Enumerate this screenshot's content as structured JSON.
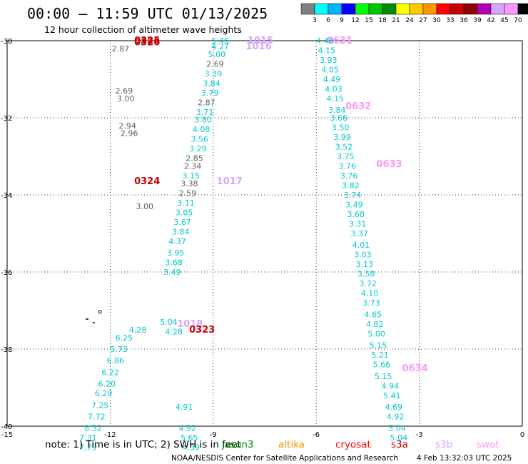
{
  "header": {
    "title": "00:00 – 11:59 UTC 01/13/2025",
    "subtitle": "12 hour collection of altimeter wave heights"
  },
  "scale": {
    "labels": [
      "3",
      "6",
      "9",
      "12",
      "15",
      "18",
      "21",
      "24",
      "27",
      "30",
      "33",
      "36",
      "39",
      "42",
      "45",
      "70"
    ],
    "unit": "(ft)",
    "colors": [
      "#808080",
      "#00ffff",
      "#00b4ff",
      "#0000ff",
      "#00ff00",
      "#00c800",
      "#008c00",
      "#ffff00",
      "#ffc800",
      "#ff9600",
      "#ff0000",
      "#c80000",
      "#8c0000",
      "#b400b4",
      "#d7a5ff",
      "#ff96ff",
      "#000000"
    ]
  },
  "footer": {
    "note": "note: 1) Time is in UTC; 2) SWH is in feet",
    "credit": "NOAA/NESDIS Center for Satellite Applications and Research",
    "timestamp": "4 Feb 13:32:03 UTC 2025"
  },
  "legend": [
    {
      "name": "jason3",
      "color": "#008c00"
    },
    {
      "name": "altika",
      "color": "#ff9600"
    },
    {
      "name": "cryosat",
      "color": "#ff0000"
    },
    {
      "name": "s3a",
      "color": "#c80000"
    },
    {
      "name": "s3b",
      "color": "#d7a5ff"
    },
    {
      "name": "swot",
      "color": "#ff96ff"
    }
  ],
  "chart_data": {
    "type": "scatter",
    "xlim": [
      -15,
      0
    ],
    "ylim": [
      -40,
      -30
    ],
    "x_ticks": [
      "-15",
      "-12",
      "-9",
      "-6",
      "-3",
      "0"
    ],
    "y_ticks": [
      "-30",
      "-32",
      "-34",
      "-36",
      "-38",
      "-40"
    ],
    "grid": true,
    "series": [
      {
        "name": "swot",
        "color": "#ff96ff",
        "labels": [
          {
            "x": -5.7,
            "y": -30.0,
            "text": "0631"
          },
          {
            "x": -5.15,
            "y": -31.7,
            "text": "0632"
          },
          {
            "x": -4.25,
            "y": -33.2,
            "text": "0633"
          },
          {
            "x": -3.5,
            "y": -38.5,
            "text": "0634"
          }
        ]
      },
      {
        "name": "s3b",
        "color": "#d7a5ff",
        "labels": [
          {
            "x": -8.0,
            "y": -30.0,
            "text": "1015"
          },
          {
            "x": -8.05,
            "y": -30.15,
            "text": "1016"
          },
          {
            "x": -8.9,
            "y": -33.65,
            "text": "1017"
          },
          {
            "x": -10.05,
            "y": -37.35,
            "text": "1018"
          }
        ]
      },
      {
        "name": "s3a",
        "color": "#c80000",
        "labels": [
          {
            "x": -11.3,
            "y": -30.0,
            "text": "0325"
          },
          {
            "x": -11.3,
            "y": -30.05,
            "text": "0326"
          },
          {
            "x": -11.3,
            "y": -33.65,
            "text": "0324"
          },
          {
            "x": -9.7,
            "y": -37.5,
            "text": "0323"
          }
        ]
      },
      {
        "name": "values",
        "color": "#00ffff",
        "labels": [
          {
            "x": -9.05,
            "y": -30.0,
            "text": "5.46",
            "c": 1
          },
          {
            "x": -9.05,
            "y": -30.15,
            "text": "4.27",
            "c": 1
          },
          {
            "x": -9.15,
            "y": -30.35,
            "text": "5.00",
            "c": 1
          },
          {
            "x": -9.2,
            "y": -30.6,
            "text": "2.69",
            "c": 0
          },
          {
            "x": -9.25,
            "y": -30.85,
            "text": "3.39",
            "c": 1
          },
          {
            "x": -9.3,
            "y": -31.1,
            "text": "3.84",
            "c": 1
          },
          {
            "x": -9.35,
            "y": -31.35,
            "text": "3.79",
            "c": 1
          },
          {
            "x": -9.45,
            "y": -31.6,
            "text": "2.87",
            "c": 0
          },
          {
            "x": -9.5,
            "y": -31.85,
            "text": "3.71",
            "c": 1
          },
          {
            "x": -9.55,
            "y": -32.05,
            "text": "3.80",
            "c": 1
          },
          {
            "x": -9.6,
            "y": -32.3,
            "text": "4.08",
            "c": 1
          },
          {
            "x": -9.65,
            "y": -32.55,
            "text": "3.56",
            "c": 1
          },
          {
            "x": -9.7,
            "y": -32.8,
            "text": "3.29",
            "c": 1
          },
          {
            "x": -9.8,
            "y": -33.05,
            "text": "2.85",
            "c": 0
          },
          {
            "x": -9.85,
            "y": -33.25,
            "text": "2.34",
            "c": 0
          },
          {
            "x": -9.9,
            "y": -33.5,
            "text": "3.15",
            "c": 1
          },
          {
            "x": -9.95,
            "y": -33.7,
            "text": "3.38",
            "c": 0
          },
          {
            "x": -10.0,
            "y": -33.95,
            "text": "2.59",
            "c": 0
          },
          {
            "x": -10.05,
            "y": -34.2,
            "text": "3.11",
            "c": 1
          },
          {
            "x": -10.1,
            "y": -34.45,
            "text": "3.05",
            "c": 1
          },
          {
            "x": -10.15,
            "y": -34.7,
            "text": "3.67",
            "c": 1
          },
          {
            "x": -10.2,
            "y": -34.95,
            "text": "3.84",
            "c": 1
          },
          {
            "x": -10.3,
            "y": -35.2,
            "text": "4.37",
            "c": 1
          },
          {
            "x": -10.35,
            "y": -35.5,
            "text": "3.95",
            "c": 1
          },
          {
            "x": -10.4,
            "y": -35.75,
            "text": "3.68",
            "c": 1
          },
          {
            "x": -10.45,
            "y": -36.0,
            "text": "3.49",
            "c": 1
          },
          {
            "x": -11.95,
            "y": -30.2,
            "text": "2.87",
            "c": 0
          },
          {
            "x": -11.85,
            "y": -31.3,
            "text": "2.69",
            "c": 0
          },
          {
            "x": -11.8,
            "y": -31.5,
            "text": "3.00",
            "c": 0
          },
          {
            "x": -11.75,
            "y": -32.2,
            "text": "2.94",
            "c": 0
          },
          {
            "x": -11.7,
            "y": -32.4,
            "text": "2.96",
            "c": 0
          },
          {
            "x": -11.25,
            "y": -34.3,
            "text": "3.00",
            "c": 0
          },
          {
            "x": -11.45,
            "y": -37.5,
            "text": "4.28",
            "c": 1
          },
          {
            "x": -11.85,
            "y": -37.7,
            "text": "6.25",
            "c": 1
          },
          {
            "x": -12.0,
            "y": -38.0,
            "text": "5.73",
            "c": 1
          },
          {
            "x": -12.1,
            "y": -38.3,
            "text": "6.86",
            "c": 1
          },
          {
            "x": -12.25,
            "y": -38.6,
            "text": "6.22",
            "c": 1
          },
          {
            "x": -12.35,
            "y": -38.9,
            "text": "6.20",
            "c": 1
          },
          {
            "x": -12.45,
            "y": -39.15,
            "text": "6.29",
            "c": 1
          },
          {
            "x": -12.55,
            "y": -39.45,
            "text": "7.25",
            "c": 1
          },
          {
            "x": -12.65,
            "y": -39.75,
            "text": "7.72",
            "c": 1
          },
          {
            "x": -12.75,
            "y": -40.05,
            "text": "8.32",
            "c": 1
          },
          {
            "x": -12.9,
            "y": -40.3,
            "text": "7.31",
            "c": 1
          },
          {
            "x": -12.9,
            "y": -40.55,
            "text": "7.79",
            "c": 1
          },
          {
            "x": -6.0,
            "y": -30.0,
            "text": "4.48",
            "c": 1
          },
          {
            "x": -5.95,
            "y": -30.25,
            "text": "4.15",
            "c": 1
          },
          {
            "x": -5.9,
            "y": -30.5,
            "text": "3.93",
            "c": 1
          },
          {
            "x": -5.85,
            "y": -30.75,
            "text": "4.05",
            "c": 1
          },
          {
            "x": -5.8,
            "y": -31.0,
            "text": "4.49",
            "c": 1
          },
          {
            "x": -5.75,
            "y": -31.25,
            "text": "4.03",
            "c": 1
          },
          {
            "x": -5.7,
            "y": -31.5,
            "text": "4.15",
            "c": 1
          },
          {
            "x": -5.65,
            "y": -31.8,
            "text": "3.84",
            "c": 1
          },
          {
            "x": -5.6,
            "y": -32.0,
            "text": "3.66",
            "c": 1
          },
          {
            "x": -5.55,
            "y": -32.25,
            "text": "3.50",
            "c": 1
          },
          {
            "x": -5.5,
            "y": -32.5,
            "text": "3.99",
            "c": 1
          },
          {
            "x": -5.45,
            "y": -32.75,
            "text": "3.52",
            "c": 1
          },
          {
            "x": -5.4,
            "y": -33.0,
            "text": "3.75",
            "c": 1
          },
          {
            "x": -5.35,
            "y": -33.25,
            "text": "3.76",
            "c": 1
          },
          {
            "x": -5.3,
            "y": -33.5,
            "text": "3.76",
            "c": 1
          },
          {
            "x": -5.25,
            "y": -33.75,
            "text": "3.82",
            "c": 1
          },
          {
            "x": -5.2,
            "y": -34.0,
            "text": "3.74",
            "c": 1
          },
          {
            "x": -5.15,
            "y": -34.25,
            "text": "3.49",
            "c": 1
          },
          {
            "x": -5.1,
            "y": -34.5,
            "text": "3.68",
            "c": 1
          },
          {
            "x": -5.05,
            "y": -34.75,
            "text": "3.31",
            "c": 1
          },
          {
            "x": -5.0,
            "y": -35.0,
            "text": "3.37",
            "c": 1
          },
          {
            "x": -4.95,
            "y": -35.3,
            "text": "4.01",
            "c": 1
          },
          {
            "x": -4.9,
            "y": -35.55,
            "text": "3.03",
            "c": 1
          },
          {
            "x": -4.85,
            "y": -35.8,
            "text": "3.13",
            "c": 1
          },
          {
            "x": -4.8,
            "y": -36.05,
            "text": "3.58",
            "c": 1
          },
          {
            "x": -4.75,
            "y": -36.3,
            "text": "3.72",
            "c": 1
          },
          {
            "x": -4.7,
            "y": -36.55,
            "text": "4.10",
            "c": 1
          },
          {
            "x": -4.65,
            "y": -36.8,
            "text": "3.73",
            "c": 1
          },
          {
            "x": -4.6,
            "y": -37.1,
            "text": "4.65",
            "c": 1
          },
          {
            "x": -4.55,
            "y": -37.35,
            "text": "4.82",
            "c": 1
          },
          {
            "x": -4.5,
            "y": -37.6,
            "text": "5.00",
            "c": 1
          },
          {
            "x": -4.45,
            "y": -37.9,
            "text": "5.15",
            "c": 1
          },
          {
            "x": -4.4,
            "y": -38.15,
            "text": "5.21",
            "c": 1
          },
          {
            "x": -4.35,
            "y": -38.4,
            "text": "5.66",
            "c": 1
          },
          {
            "x": -4.3,
            "y": -38.7,
            "text": "5.15",
            "c": 1
          },
          {
            "x": -4.1,
            "y": -38.95,
            "text": "4.94",
            "c": 1
          },
          {
            "x": -4.05,
            "y": -39.2,
            "text": "5.41",
            "c": 1
          },
          {
            "x": -4.0,
            "y": -39.5,
            "text": "4.69",
            "c": 1
          },
          {
            "x": -3.95,
            "y": -39.75,
            "text": "4.92",
            "c": 1
          },
          {
            "x": -3.9,
            "y": -40.05,
            "text": "5.04",
            "c": 1
          },
          {
            "x": -3.85,
            "y": -40.3,
            "text": "5.04",
            "c": 1
          },
          {
            "x": -10.55,
            "y": -37.3,
            "text": "5.04",
            "c": 1
          },
          {
            "x": -10.4,
            "y": -37.55,
            "text": "4.28",
            "c": 1
          },
          {
            "x": -10.1,
            "y": -39.5,
            "text": "4.91",
            "c": 1
          },
          {
            "x": -10.0,
            "y": -40.05,
            "text": "4.92",
            "c": 1
          },
          {
            "x": -9.95,
            "y": -40.3,
            "text": "5.65",
            "c": 1
          },
          {
            "x": -9.9,
            "y": -40.55,
            "text": "4.39",
            "c": 1
          }
        ]
      }
    ]
  }
}
